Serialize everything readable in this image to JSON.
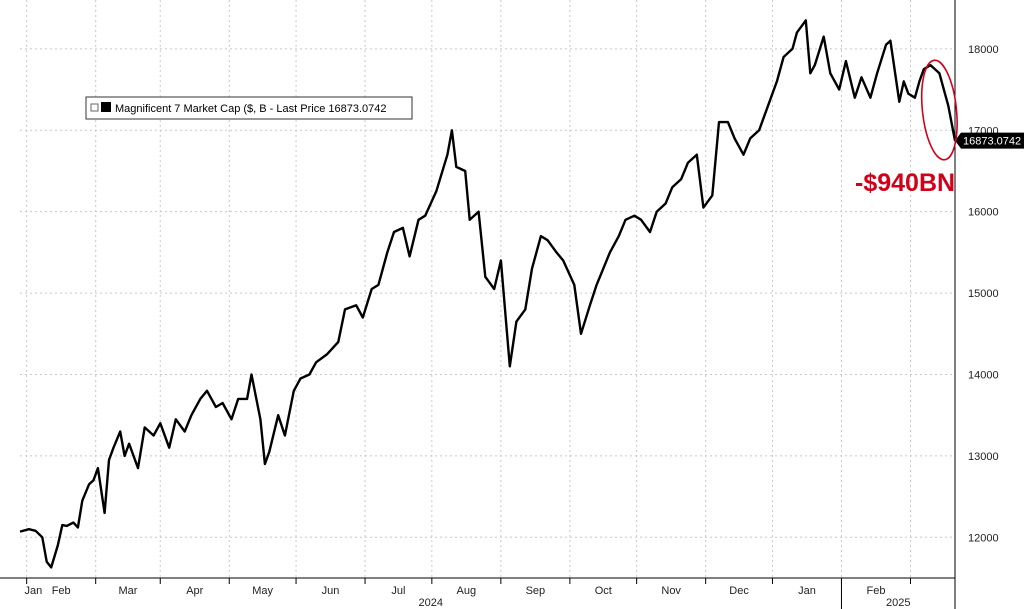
{
  "chart_data": {
    "type": "line",
    "legend": "Magnificent 7 Market Cap ($, B - Last Price 16873.0742",
    "last_price_label": "16873.0742",
    "last_value": 16873.0742,
    "annotation": "-$940BN",
    "ylim": [
      11500,
      18600
    ],
    "y_ticks": [
      12000,
      13000,
      14000,
      15000,
      16000,
      17000,
      18000
    ],
    "months": [
      "Jan",
      "Feb",
      "Mar",
      "Apr",
      "May",
      "Jun",
      "Jul",
      "Aug",
      "Sep",
      "Oct",
      "Nov",
      "Dec",
      "Jan",
      "Feb"
    ],
    "years": [
      {
        "label": "2024",
        "month_index": 6
      },
      {
        "label": "2025",
        "month_index": 12.5
      }
    ],
    "x_range": [
      "2023-12-29",
      "2025-02-21"
    ],
    "series": [
      {
        "color": "#000000",
        "points": [
          [
            "2023-12-29",
            12070
          ],
          [
            "2024-01-02",
            12100
          ],
          [
            "2024-01-05",
            12080
          ],
          [
            "2024-01-08",
            12000
          ],
          [
            "2024-01-10",
            11700
          ],
          [
            "2024-01-12",
            11630
          ],
          [
            "2024-01-15",
            11900
          ],
          [
            "2024-01-17",
            12150
          ],
          [
            "2024-01-19",
            12140
          ],
          [
            "2024-01-22",
            12180
          ],
          [
            "2024-01-24",
            12120
          ],
          [
            "2024-01-26",
            12450
          ],
          [
            "2024-01-29",
            12650
          ],
          [
            "2024-01-31",
            12700
          ],
          [
            "2024-02-02",
            12850
          ],
          [
            "2024-02-05",
            12300
          ],
          [
            "2024-02-07",
            12950
          ],
          [
            "2024-02-09",
            13100
          ],
          [
            "2024-02-12",
            13300
          ],
          [
            "2024-02-14",
            13000
          ],
          [
            "2024-02-16",
            13150
          ],
          [
            "2024-02-20",
            12850
          ],
          [
            "2024-02-23",
            13350
          ],
          [
            "2024-02-27",
            13250
          ],
          [
            "2024-03-01",
            13400
          ],
          [
            "2024-03-05",
            13100
          ],
          [
            "2024-03-08",
            13450
          ],
          [
            "2024-03-12",
            13300
          ],
          [
            "2024-03-15",
            13500
          ],
          [
            "2024-03-19",
            13700
          ],
          [
            "2024-03-22",
            13800
          ],
          [
            "2024-03-26",
            13600
          ],
          [
            "2024-03-29",
            13650
          ],
          [
            "2024-04-02",
            13450
          ],
          [
            "2024-04-05",
            13700
          ],
          [
            "2024-04-09",
            13700
          ],
          [
            "2024-04-11",
            14000
          ],
          [
            "2024-04-15",
            13450
          ],
          [
            "2024-04-17",
            12900
          ],
          [
            "2024-04-19",
            13050
          ],
          [
            "2024-04-23",
            13500
          ],
          [
            "2024-04-26",
            13250
          ],
          [
            "2024-04-30",
            13800
          ],
          [
            "2024-05-03",
            13950
          ],
          [
            "2024-05-07",
            14000
          ],
          [
            "2024-05-10",
            14150
          ],
          [
            "2024-05-15",
            14250
          ],
          [
            "2024-05-20",
            14400
          ],
          [
            "2024-05-23",
            14800
          ],
          [
            "2024-05-28",
            14850
          ],
          [
            "2024-05-31",
            14700
          ],
          [
            "2024-06-04",
            15050
          ],
          [
            "2024-06-07",
            15100
          ],
          [
            "2024-06-11",
            15500
          ],
          [
            "2024-06-14",
            15750
          ],
          [
            "2024-06-18",
            15800
          ],
          [
            "2024-06-21",
            15450
          ],
          [
            "2024-06-25",
            15900
          ],
          [
            "2024-06-28",
            15950
          ],
          [
            "2024-07-03",
            16250
          ],
          [
            "2024-07-08",
            16700
          ],
          [
            "2024-07-10",
            17000
          ],
          [
            "2024-07-12",
            16550
          ],
          [
            "2024-07-16",
            16500
          ],
          [
            "2024-07-18",
            15900
          ],
          [
            "2024-07-22",
            16000
          ],
          [
            "2024-07-25",
            15200
          ],
          [
            "2024-07-29",
            15050
          ],
          [
            "2024-08-01",
            15400
          ],
          [
            "2024-08-05",
            14100
          ],
          [
            "2024-08-08",
            14650
          ],
          [
            "2024-08-12",
            14800
          ],
          [
            "2024-08-15",
            15300
          ],
          [
            "2024-08-19",
            15700
          ],
          [
            "2024-08-22",
            15650
          ],
          [
            "2024-08-26",
            15500
          ],
          [
            "2024-08-29",
            15400
          ],
          [
            "2024-09-03",
            15100
          ],
          [
            "2024-09-06",
            14500
          ],
          [
            "2024-09-10",
            14850
          ],
          [
            "2024-09-13",
            15100
          ],
          [
            "2024-09-16",
            15300
          ],
          [
            "2024-09-19",
            15500
          ],
          [
            "2024-09-23",
            15700
          ],
          [
            "2024-09-26",
            15900
          ],
          [
            "2024-09-30",
            15950
          ],
          [
            "2024-10-03",
            15900
          ],
          [
            "2024-10-07",
            15750
          ],
          [
            "2024-10-10",
            16000
          ],
          [
            "2024-10-14",
            16100
          ],
          [
            "2024-10-17",
            16300
          ],
          [
            "2024-10-21",
            16400
          ],
          [
            "2024-10-24",
            16600
          ],
          [
            "2024-10-28",
            16700
          ],
          [
            "2024-10-31",
            16050
          ],
          [
            "2024-11-04",
            16200
          ],
          [
            "2024-11-07",
            17100
          ],
          [
            "2024-11-11",
            17100
          ],
          [
            "2024-11-14",
            16900
          ],
          [
            "2024-11-18",
            16700
          ],
          [
            "2024-11-21",
            16900
          ],
          [
            "2024-11-25",
            17000
          ],
          [
            "2024-11-29",
            17300
          ],
          [
            "2024-12-03",
            17600
          ],
          [
            "2024-12-06",
            17900
          ],
          [
            "2024-12-10",
            18000
          ],
          [
            "2024-12-12",
            18200
          ],
          [
            "2024-12-16",
            18350
          ],
          [
            "2024-12-18",
            17700
          ],
          [
            "2024-12-20",
            17800
          ],
          [
            "2024-12-24",
            18150
          ],
          [
            "2024-12-27",
            17700
          ],
          [
            "2024-12-31",
            17500
          ],
          [
            "2025-01-03",
            17850
          ],
          [
            "2025-01-07",
            17400
          ],
          [
            "2025-01-10",
            17650
          ],
          [
            "2025-01-14",
            17400
          ],
          [
            "2025-01-17",
            17700
          ],
          [
            "2025-01-21",
            18050
          ],
          [
            "2025-01-23",
            18100
          ],
          [
            "2025-01-27",
            17350
          ],
          [
            "2025-01-29",
            17600
          ],
          [
            "2025-01-31",
            17450
          ],
          [
            "2025-02-03",
            17400
          ],
          [
            "2025-02-05",
            17600
          ],
          [
            "2025-02-07",
            17750
          ],
          [
            "2025-02-10",
            17800
          ],
          [
            "2025-02-12",
            17750
          ],
          [
            "2025-02-14",
            17700
          ],
          [
            "2025-02-18",
            17300
          ],
          [
            "2025-02-21",
            16873
          ]
        ]
      }
    ]
  }
}
